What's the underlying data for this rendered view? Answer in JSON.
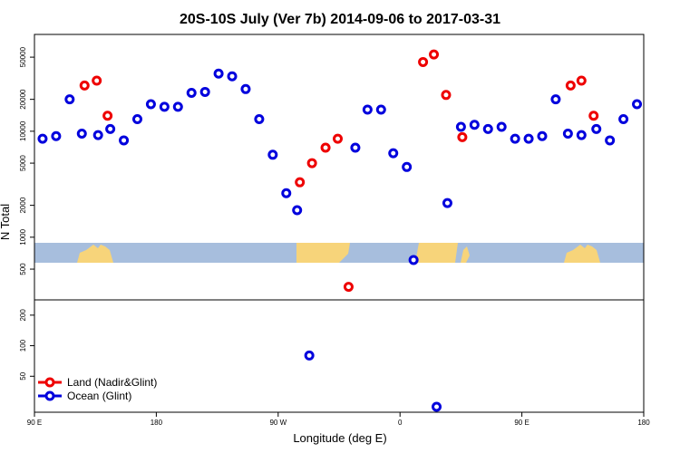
{
  "chart_data": {
    "type": "scatter",
    "title": "20S-10S July (Ver 7b)   2014-09-06 to 2017-03-31",
    "xlabel": "Longitude (deg E)",
    "ylabel": "N Total",
    "y_scale": "log",
    "x_ticks": [
      {
        "value": 0,
        "label": "90 E"
      },
      {
        "value": 90,
        "label": "180"
      },
      {
        "value": 180,
        "label": "90 W"
      },
      {
        "value": 270,
        "label": "0"
      },
      {
        "value": 360,
        "label": "90 E"
      },
      {
        "value": 450,
        "label": "180"
      }
    ],
    "xlim": [
      0,
      450
    ],
    "upper_panel": {
      "ylim": [
        300,
        70000
      ],
      "y_ticks": [
        "500",
        "1000",
        "2000",
        "5000",
        "10000",
        "20000",
        "50000"
      ]
    },
    "lower_panel": {
      "ylim": [
        25,
        250
      ],
      "y_ticks": [
        "50",
        "100",
        "200"
      ]
    },
    "legend": {
      "placement": "bottom-left"
    },
    "series": [
      {
        "name": "Land (Nadir&Glint)",
        "color": "#ee0000",
        "points": [
          [
            37,
            27000
          ],
          [
            46,
            30000
          ],
          [
            54,
            14000
          ],
          [
            196,
            3300
          ],
          [
            205,
            5000
          ],
          [
            215,
            7000
          ],
          [
            224,
            8500
          ],
          [
            232,
            340
          ],
          [
            287,
            45000
          ],
          [
            295,
            53000
          ],
          [
            304,
            22000
          ],
          [
            316,
            8800
          ],
          [
            396,
            27000
          ],
          [
            404,
            30000
          ],
          [
            413,
            14000
          ]
        ]
      },
      {
        "name": "Ocean (Glint)",
        "color": "#0000dd",
        "points": [
          [
            6,
            8500
          ],
          [
            16,
            9000
          ],
          [
            26,
            20000
          ],
          [
            35,
            9500
          ],
          [
            47,
            9200
          ],
          [
            56,
            10500
          ],
          [
            66,
            8200
          ],
          [
            76,
            13000
          ],
          [
            86,
            18000
          ],
          [
            96,
            17000
          ],
          [
            106,
            17000
          ],
          [
            116,
            23000
          ],
          [
            126,
            23500
          ],
          [
            136,
            35000
          ],
          [
            146,
            33000
          ],
          [
            156,
            25000
          ],
          [
            166,
            13000
          ],
          [
            176,
            6000
          ],
          [
            186,
            2600
          ],
          [
            194,
            1800
          ],
          [
            203,
            80
          ],
          [
            237,
            7000
          ],
          [
            246,
            16000
          ],
          [
            256,
            16000
          ],
          [
            265,
            6200
          ],
          [
            275,
            4600
          ],
          [
            280,
            610
          ],
          [
            297,
            25
          ],
          [
            305,
            2100
          ],
          [
            315,
            11000
          ],
          [
            325,
            11500
          ],
          [
            335,
            10500
          ],
          [
            345,
            11000
          ],
          [
            355,
            8500
          ],
          [
            365,
            8500
          ],
          [
            375,
            9000
          ],
          [
            385,
            20000
          ],
          [
            394,
            9500
          ],
          [
            404,
            9200
          ],
          [
            415,
            10500
          ],
          [
            425,
            8200
          ],
          [
            435,
            13000
          ],
          [
            445,
            18000
          ]
        ]
      }
    ]
  }
}
